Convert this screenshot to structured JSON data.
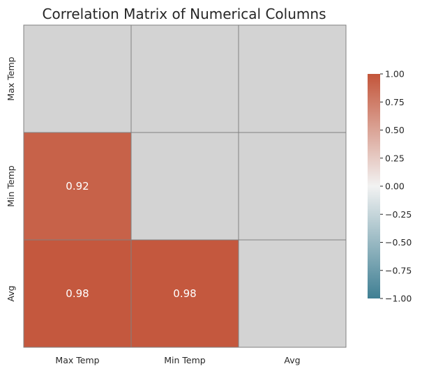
{
  "chart_data": {
    "type": "heatmap",
    "title": "Correlation Matrix of Numerical Columns",
    "row_labels": [
      "Max Temp",
      "Min Temp",
      "Avg"
    ],
    "col_labels": [
      "Max Temp",
      "Min Temp",
      "Avg"
    ],
    "values": [
      [
        null,
        null,
        null
      ],
      [
        0.92,
        null,
        null
      ],
      [
        0.98,
        0.98,
        null
      ]
    ],
    "cell_labels": [
      [
        "",
        "",
        ""
      ],
      [
        "0.92",
        "",
        ""
      ],
      [
        "0.98",
        "0.98",
        ""
      ]
    ],
    "mask": "upper triangle including diagonal",
    "vmin": -1.0,
    "vmax": 1.0,
    "colorbar": {
      "ticks": [
        1.0,
        0.75,
        0.5,
        0.25,
        0.0,
        -0.25,
        -0.5,
        -0.75,
        -1.0
      ],
      "tick_labels": [
        "1.00",
        "0.75",
        "0.50",
        "0.25",
        "0.00",
        "−0.25",
        "−0.50",
        "−0.75",
        "−1.00"
      ]
    },
    "colors": {
      "masked_cell": "#d3d3d3",
      "cell_border": "#808080",
      "low": "#3f7f93",
      "mid": "#f2f2f2",
      "high": "#c3553a"
    },
    "grid": false,
    "legend": "right colorbar"
  }
}
